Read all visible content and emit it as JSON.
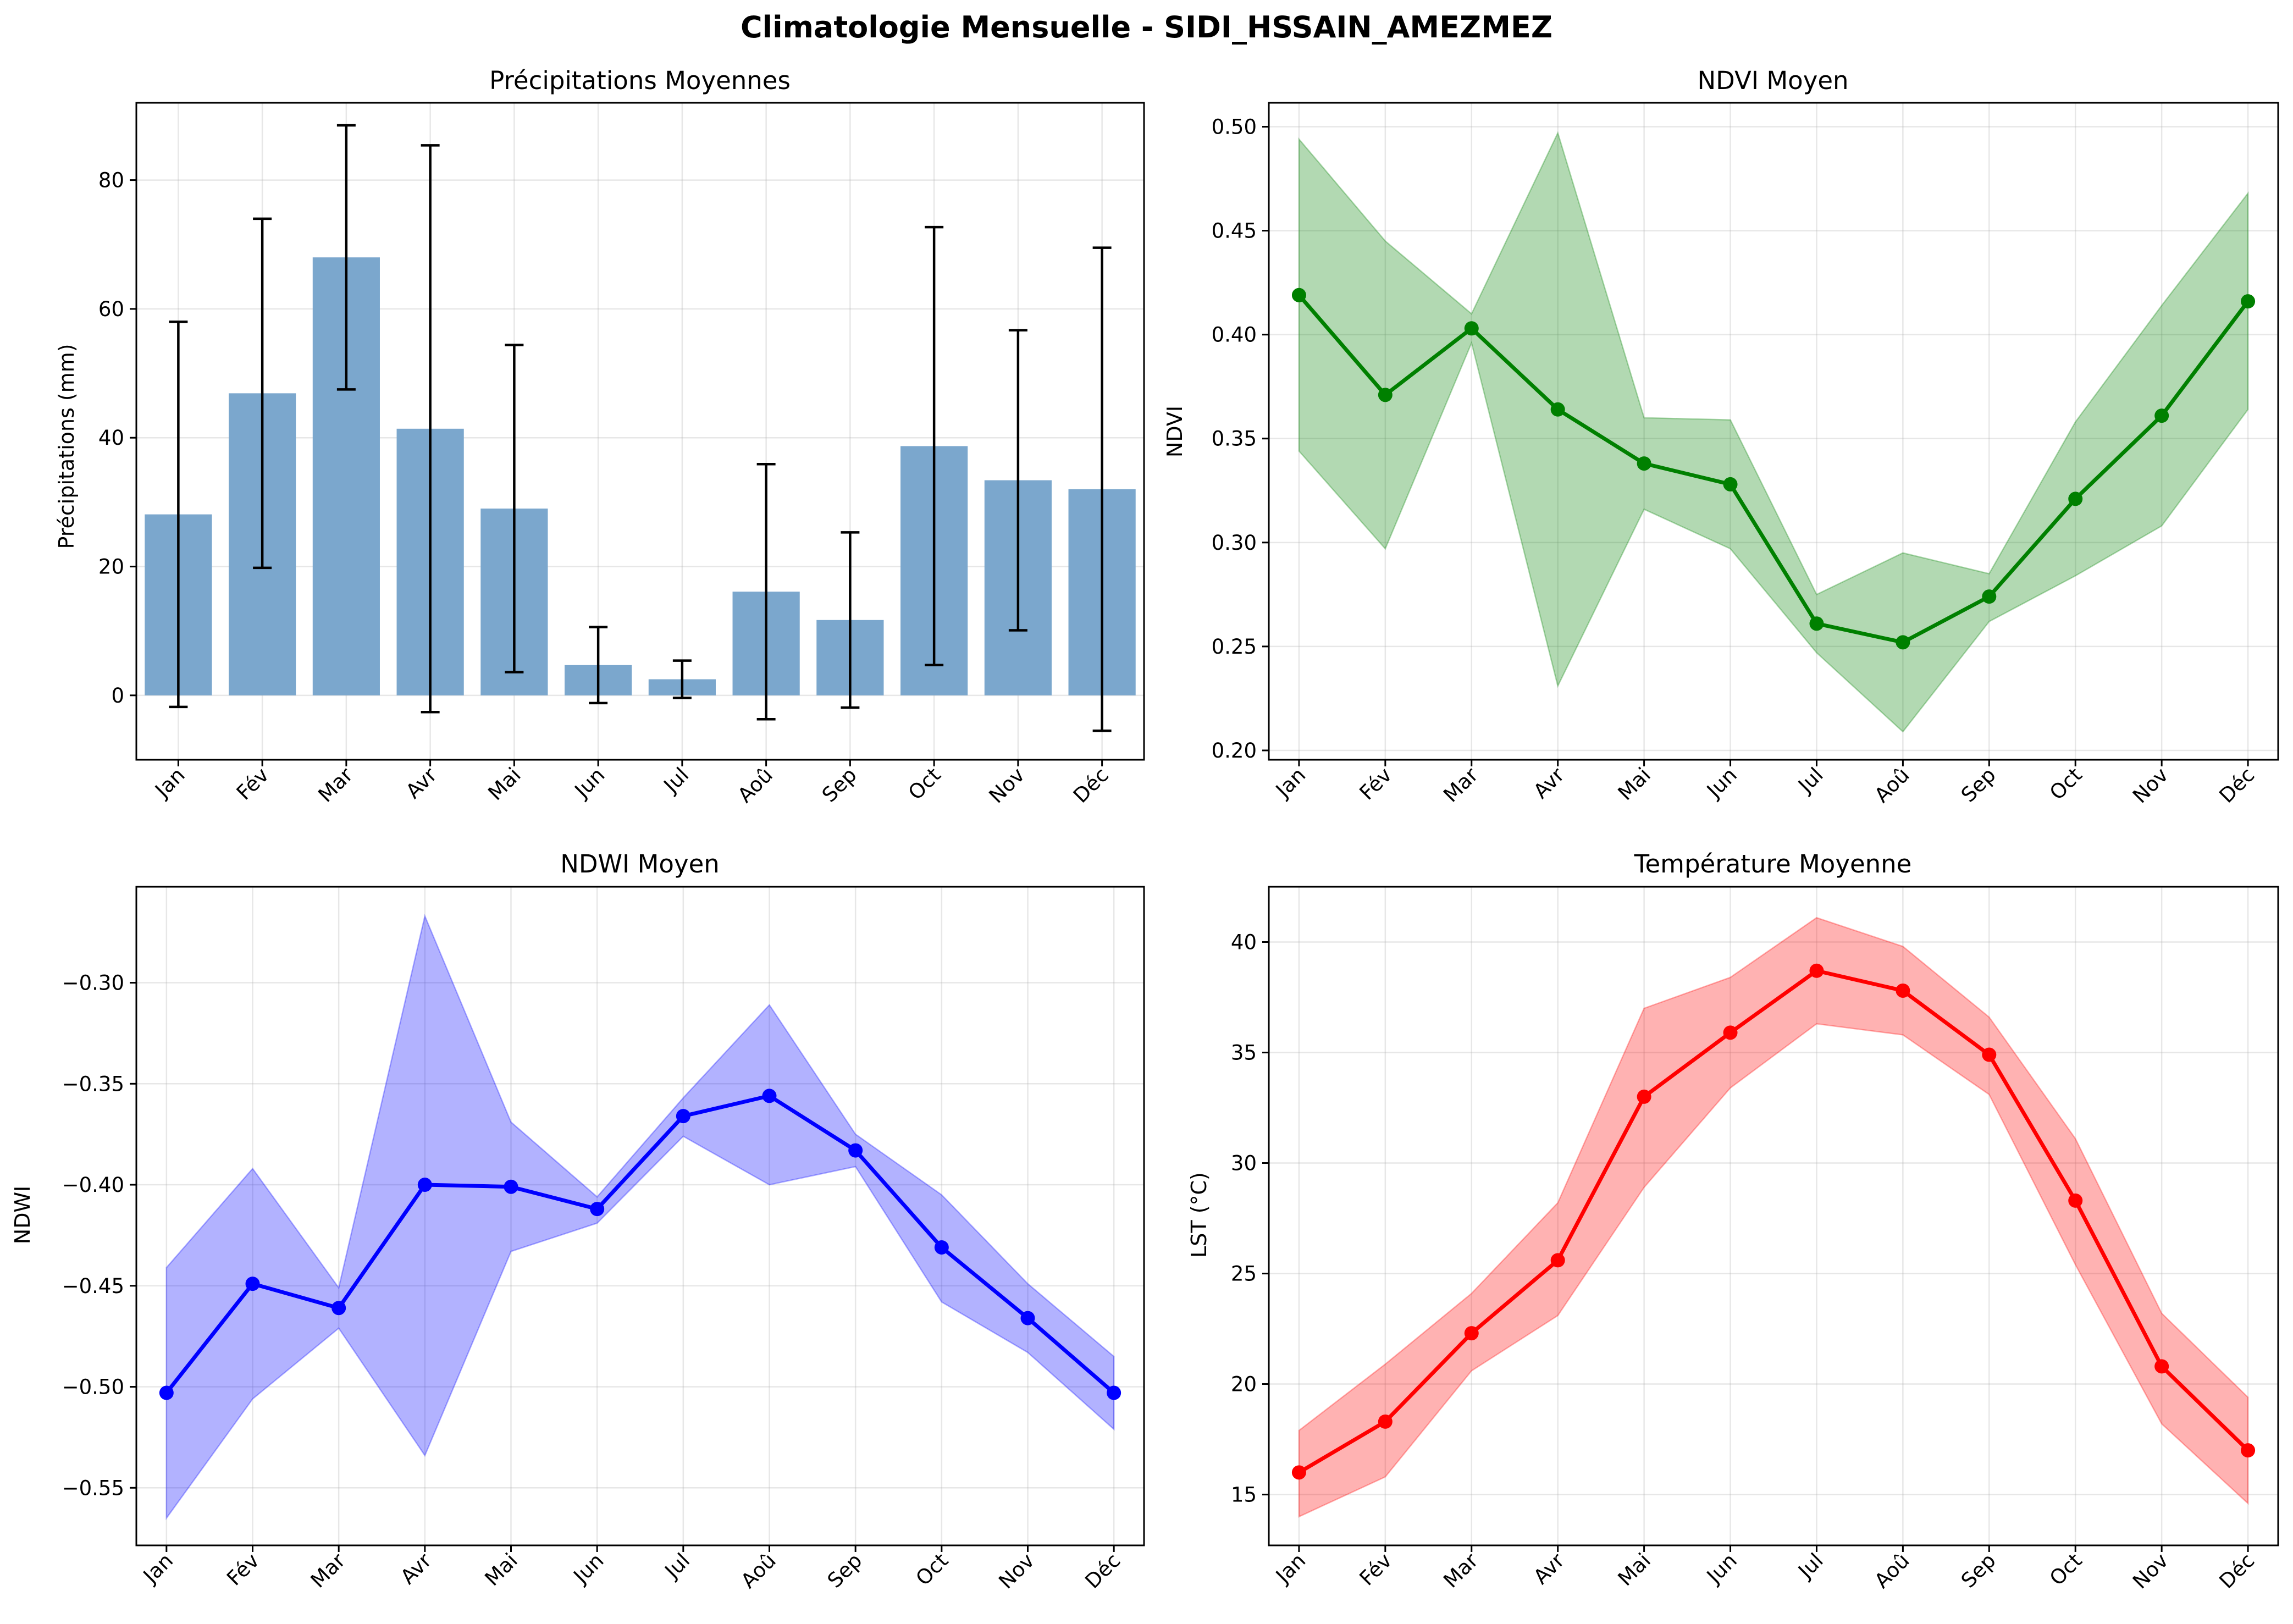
{
  "figure": {
    "title": "Climatologie Mensuelle - SIDI_HSSAIN_AMEZMEZ"
  },
  "chart_data": [
    {
      "id": "precip",
      "type": "bar",
      "title": "Précipitations Moyennes",
      "xlabel": "",
      "ylabel": "Précipitations (mm)",
      "ylim": [
        -10,
        92
      ],
      "yticks": [
        0,
        20,
        40,
        60,
        80
      ],
      "ytick_labels": [
        "0",
        "20",
        "40",
        "60",
        "80"
      ],
      "categories": [
        "Jan",
        "Fév",
        "Mar",
        "Avr",
        "Mai",
        "Jun",
        "Jul",
        "Aoû",
        "Sep",
        "Oct",
        "Nov",
        "Déc"
      ],
      "values": [
        28.1,
        46.9,
        68.0,
        41.4,
        29.0,
        4.7,
        2.5,
        16.1,
        11.7,
        38.7,
        33.4,
        32.0
      ],
      "error": [
        29.9,
        27.1,
        20.5,
        44.0,
        25.4,
        5.9,
        2.9,
        19.8,
        13.6,
        34.0,
        23.3,
        37.5
      ],
      "bar_color": "#7ba7cd",
      "grid": true
    },
    {
      "id": "ndvi",
      "type": "line",
      "title": "NDVI Moyen",
      "xlabel": "",
      "ylabel": "NDVI",
      "ylim": [
        0.1955,
        0.5115
      ],
      "yticks": [
        0.2,
        0.25,
        0.3,
        0.35,
        0.4,
        0.45,
        0.5
      ],
      "ytick_labels": [
        "0.20",
        "0.25",
        "0.30",
        "0.35",
        "0.40",
        "0.45",
        "0.50"
      ],
      "categories": [
        "Jan",
        "Fév",
        "Mar",
        "Avr",
        "Mai",
        "Jun",
        "Jul",
        "Aoû",
        "Sep",
        "Oct",
        "Nov",
        "Déc"
      ],
      "values": [
        0.419,
        0.371,
        0.403,
        0.364,
        0.338,
        0.328,
        0.261,
        0.252,
        0.274,
        0.321,
        0.361,
        0.416
      ],
      "band_low": [
        0.344,
        0.297,
        0.396,
        0.231,
        0.316,
        0.297,
        0.247,
        0.209,
        0.262,
        0.284,
        0.308,
        0.364
      ],
      "band_high": [
        0.494,
        0.445,
        0.41,
        0.497,
        0.36,
        0.359,
        0.275,
        0.295,
        0.285,
        0.358,
        0.414,
        0.468
      ],
      "color": "#008000",
      "band_color": "#008000",
      "grid": true
    },
    {
      "id": "ndwi",
      "type": "line",
      "title": "NDWI Moyen",
      "xlabel": "",
      "ylabel": "NDWI",
      "ylim": [
        -0.5785,
        -0.2525
      ],
      "yticks": [
        -0.55,
        -0.5,
        -0.45,
        -0.4,
        -0.35,
        -0.3
      ],
      "ytick_labels": [
        "−0.55",
        "−0.50",
        "−0.45",
        "−0.40",
        "−0.35",
        "−0.30"
      ],
      "categories": [
        "Jan",
        "Fév",
        "Mar",
        "Avr",
        "Mai",
        "Jun",
        "Jul",
        "Aoû",
        "Sep",
        "Oct",
        "Nov",
        "Déc"
      ],
      "values": [
        -0.503,
        -0.449,
        -0.461,
        -0.4,
        -0.401,
        -0.412,
        -0.366,
        -0.356,
        -0.383,
        -0.431,
        -0.466,
        -0.503
      ],
      "band_low": [
        -0.565,
        -0.506,
        -0.471,
        -0.534,
        -0.433,
        -0.419,
        -0.376,
        -0.4,
        -0.391,
        -0.458,
        -0.483,
        -0.521
      ],
      "band_high": [
        -0.441,
        -0.392,
        -0.451,
        -0.267,
        -0.369,
        -0.406,
        -0.357,
        -0.311,
        -0.375,
        -0.405,
        -0.449,
        -0.485
      ],
      "color": "#0000ff",
      "band_color": "#0000ff",
      "grid": true
    },
    {
      "id": "lst",
      "type": "line",
      "title": "Température Moyenne",
      "xlabel": "",
      "ylabel": "LST (°C)",
      "ylim": [
        12.7,
        42.5
      ],
      "yticks": [
        15,
        20,
        25,
        30,
        35,
        40
      ],
      "ytick_labels": [
        "15",
        "20",
        "25",
        "30",
        "35",
        "40"
      ],
      "categories": [
        "Jan",
        "Fév",
        "Mar",
        "Avr",
        "Mai",
        "Jun",
        "Jul",
        "Aoû",
        "Sep",
        "Oct",
        "Nov",
        "Déc"
      ],
      "values": [
        16.0,
        18.3,
        22.3,
        25.6,
        33.0,
        35.9,
        38.7,
        37.8,
        34.9,
        28.3,
        20.8,
        17.0
      ],
      "band_low": [
        14.0,
        15.8,
        20.6,
        23.1,
        28.9,
        33.4,
        36.3,
        35.8,
        33.1,
        25.4,
        18.2,
        14.6
      ],
      "band_high": [
        17.9,
        20.9,
        24.1,
        28.2,
        37.0,
        38.4,
        41.1,
        39.8,
        36.6,
        31.1,
        23.2,
        19.4
      ],
      "color": "#ff0000",
      "band_color": "#ff0000",
      "grid": true
    }
  ]
}
